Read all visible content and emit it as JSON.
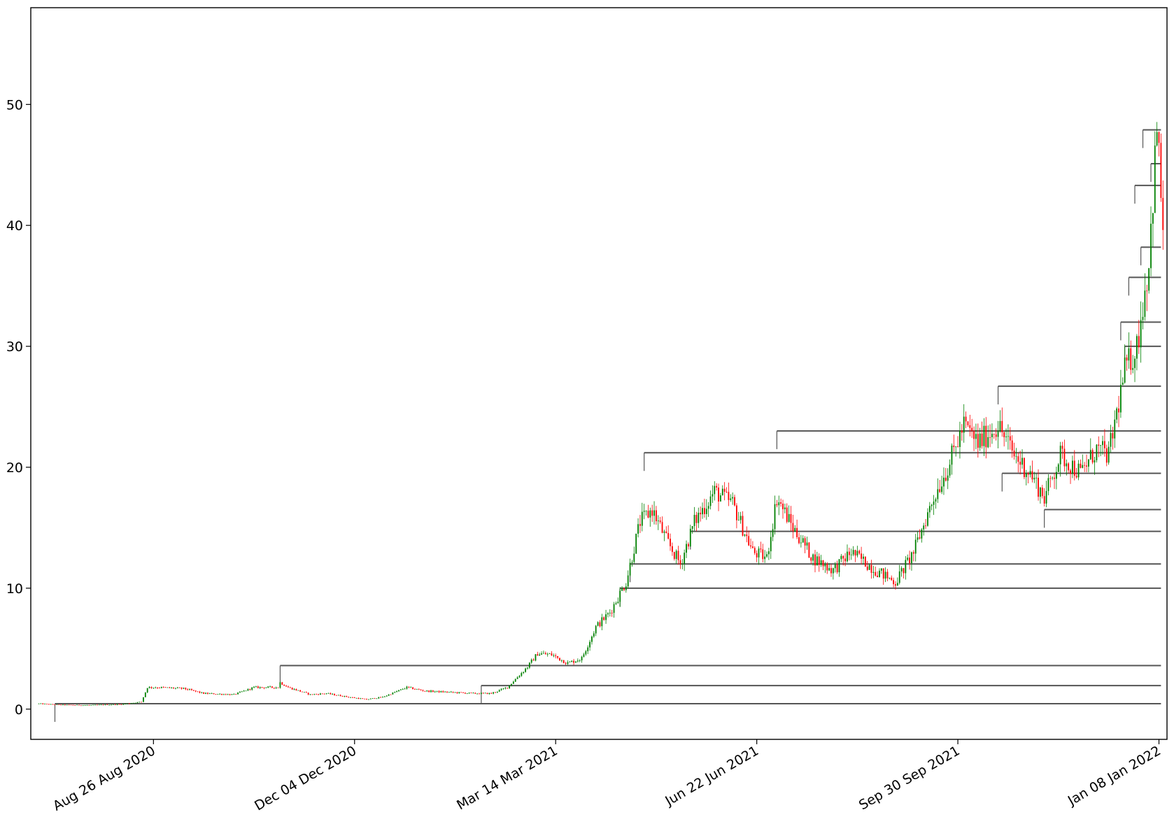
{
  "chart_data": {
    "type": "candlestick",
    "title": "",
    "xlabel": "",
    "ylabel": "",
    "xlim": [
      "2020-06-26",
      "2022-01-12"
    ],
    "ylim": [
      -2.5,
      58
    ],
    "grid": false,
    "legend": null,
    "colors": {
      "up": "#008000",
      "down": "#ff0000",
      "level": "#555555"
    },
    "yticks": [
      0,
      10,
      20,
      30,
      40,
      50
    ],
    "yticks_text": [
      "0",
      "10",
      "20",
      "30",
      "40",
      "50"
    ],
    "xticks": [
      "2020-08-26",
      "2020-12-04",
      "2021-03-14",
      "2021-06-22",
      "2021-09-30",
      "2022-01-08"
    ],
    "xticks_text": [
      "Aug 26 Aug 2020",
      "Dec 04 Dec 2020",
      "Mar 14 Mar 2021",
      "Jun 22 Jun 2021",
      "Sep 30 Sep 2021",
      "Jan 08 Jan 2022"
    ],
    "price_path": [
      [
        "2020-06-30",
        0.45
      ],
      [
        "2020-07-10",
        0.35
      ],
      [
        "2020-07-25",
        0.32
      ],
      [
        "2020-08-10",
        0.4
      ],
      [
        "2020-08-20",
        0.6
      ],
      [
        "2020-08-23",
        1.8
      ],
      [
        "2020-08-28",
        1.8
      ],
      [
        "2020-09-10",
        1.7
      ],
      [
        "2020-09-20",
        1.3
      ],
      [
        "2020-10-05",
        1.2
      ],
      [
        "2020-10-15",
        1.8
      ],
      [
        "2020-10-27",
        1.8
      ],
      [
        "2020-10-28",
        2.2
      ],
      [
        "2020-11-01",
        1.8
      ],
      [
        "2020-11-12",
        1.2
      ],
      [
        "2020-11-20",
        1.3
      ],
      [
        "2020-12-01",
        1.0
      ],
      [
        "2020-12-10",
        0.8
      ],
      [
        "2020-12-18",
        1.0
      ],
      [
        "2020-12-30",
        1.8
      ],
      [
        "2021-01-08",
        1.5
      ],
      [
        "2021-01-20",
        1.4
      ],
      [
        "2021-02-01",
        1.3
      ],
      [
        "2021-02-10",
        1.3
      ],
      [
        "2021-02-18",
        1.8
      ],
      [
        "2021-02-28",
        3.5
      ],
      [
        "2021-03-05",
        4.6
      ],
      [
        "2021-03-12",
        4.5
      ],
      [
        "2021-03-20",
        3.8
      ],
      [
        "2021-03-27",
        4.2
      ],
      [
        "2021-04-03",
        6.8
      ],
      [
        "2021-04-10",
        8.0
      ],
      [
        "2021-04-18",
        10.5
      ],
      [
        "2021-04-25",
        15.5
      ],
      [
        "2021-05-01",
        16.5
      ],
      [
        "2021-05-08",
        14.0
      ],
      [
        "2021-05-15",
        12.0
      ],
      [
        "2021-05-22",
        15.5
      ],
      [
        "2021-06-01",
        18.0
      ],
      [
        "2021-06-10",
        17.0
      ],
      [
        "2021-06-20",
        13.0
      ],
      [
        "2021-06-27",
        12.5
      ],
      [
        "2021-07-02",
        17.5
      ],
      [
        "2021-07-10",
        15.0
      ],
      [
        "2021-07-20",
        12.5
      ],
      [
        "2021-07-30",
        11.5
      ],
      [
        "2021-08-08",
        13.0
      ],
      [
        "2021-08-20",
        11.5
      ],
      [
        "2021-08-30",
        10.5
      ],
      [
        "2021-09-08",
        13.0
      ],
      [
        "2021-09-18",
        17.5
      ],
      [
        "2021-09-25",
        20.0
      ],
      [
        "2021-10-03",
        23.5
      ],
      [
        "2021-10-10",
        22.0
      ],
      [
        "2021-10-20",
        23.5
      ],
      [
        "2021-10-28",
        21.0
      ],
      [
        "2021-11-05",
        19.5
      ],
      [
        "2021-11-12",
        17.5
      ],
      [
        "2021-11-20",
        21.0
      ],
      [
        "2021-11-30",
        19.5
      ],
      [
        "2021-12-08",
        21.5
      ],
      [
        "2021-12-14",
        21.0
      ],
      [
        "2021-12-22",
        28.0
      ],
      [
        "2021-12-28",
        30.0
      ],
      [
        "2022-01-03",
        37.0
      ],
      [
        "2022-01-07",
        48.0
      ],
      [
        "2022-01-10",
        40.0
      ]
    ],
    "levels": [
      {
        "start": "2020-07-08",
        "value": 0.45
      },
      {
        "start": "2021-02-05",
        "value": 1.95
      },
      {
        "start": "2020-10-28",
        "value": 3.6
      },
      {
        "start": "2021-04-15",
        "value": 10.0
      },
      {
        "start": "2021-04-20",
        "value": 12.0
      },
      {
        "start": "2021-05-20",
        "value": 14.7
      },
      {
        "start": "2021-11-12",
        "value": 16.5
      },
      {
        "start": "2021-10-22",
        "value": 19.5
      },
      {
        "start": "2021-04-27",
        "value": 21.2
      },
      {
        "start": "2021-07-02",
        "value": 23.0
      },
      {
        "start": "2021-10-20",
        "value": 26.7
      },
      {
        "start": "2021-12-22",
        "value": 30.0
      },
      {
        "start": "2021-12-20",
        "value": 32.0
      },
      {
        "start": "2021-12-24",
        "value": 35.7
      },
      {
        "start": "2021-12-30",
        "value": 38.2
      },
      {
        "start": "2021-12-27",
        "value": 43.3
      },
      {
        "start": "2022-01-04",
        "value": 45.1
      },
      {
        "start": "2021-12-31",
        "value": 47.9
      }
    ]
  }
}
